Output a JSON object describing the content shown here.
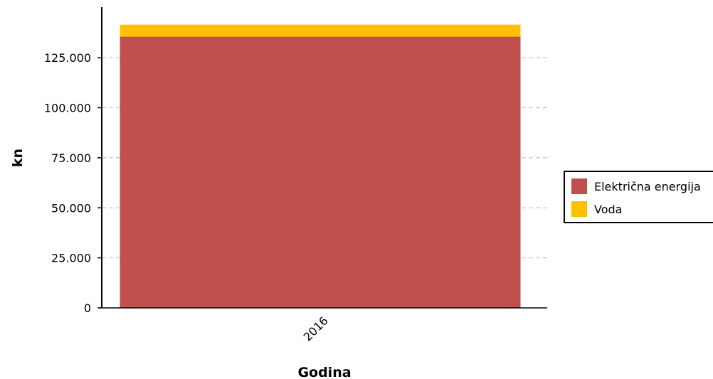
{
  "chart_data": {
    "type": "bar",
    "stacked": true,
    "categories": [
      "2016"
    ],
    "series": [
      {
        "name": "Električna energija",
        "values": [
          135500
        ],
        "color": "#c0504d"
      },
      {
        "name": "Voda",
        "values": [
          6000
        ],
        "color": "#ffc000"
      }
    ],
    "xlabel": "Godina",
    "ylabel": "kn",
    "ylim": [
      0,
      150000
    ],
    "yticks": [
      0,
      25000,
      50000,
      75000,
      100000,
      125000
    ],
    "ytick_labels": [
      "0",
      "25.000",
      "50.000",
      "75.000",
      "100.000",
      "125.000"
    ],
    "grid": true,
    "legend_position": "right"
  }
}
